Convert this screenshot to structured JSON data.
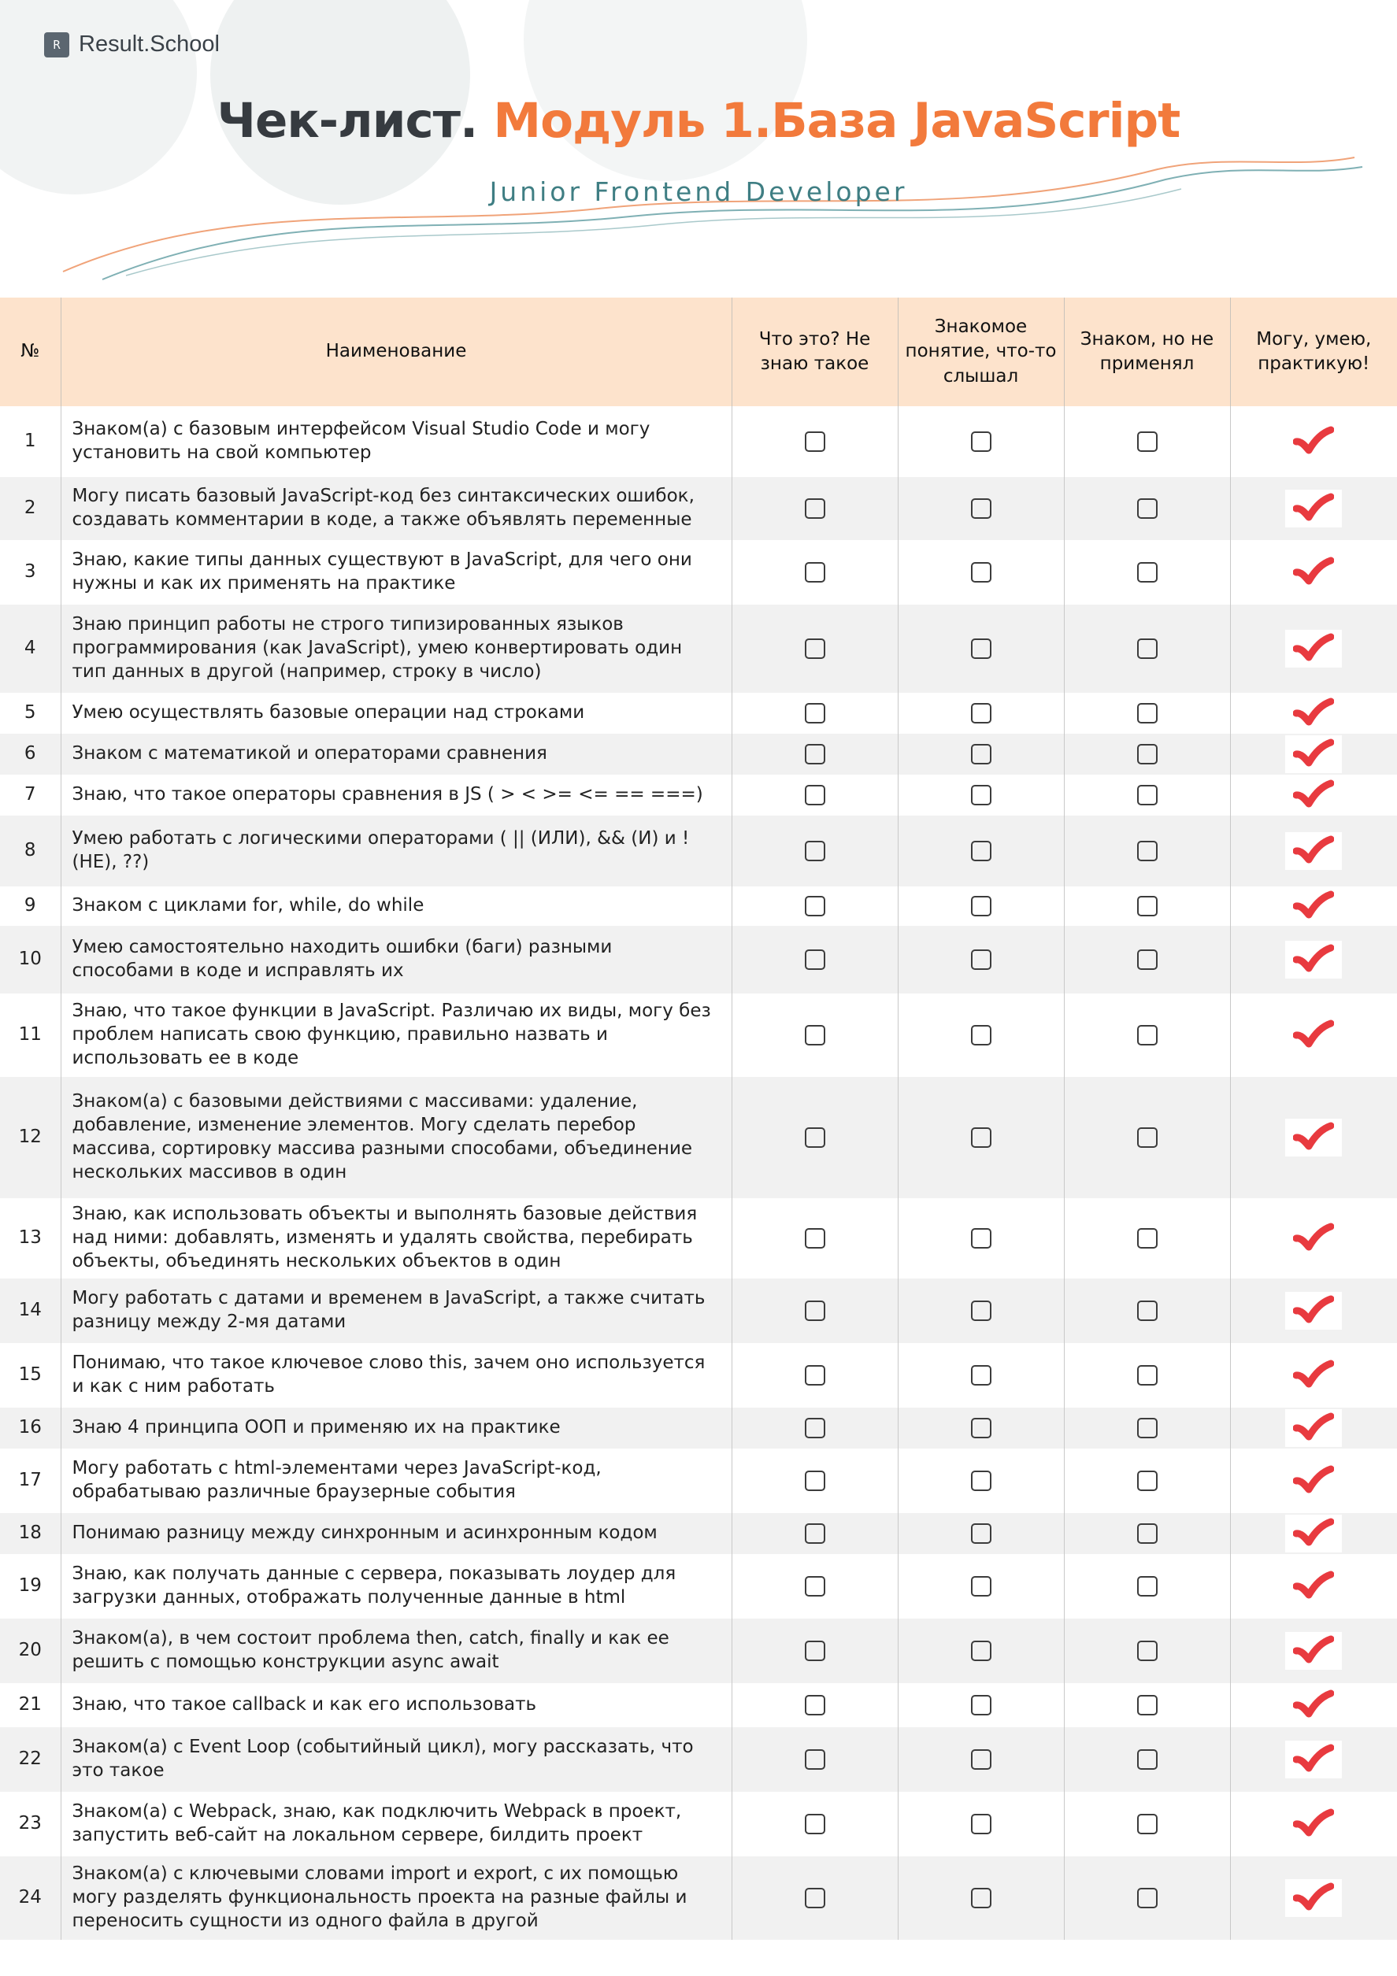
{
  "brand": {
    "logo_text": "Result.School",
    "logo_mark": "R"
  },
  "header": {
    "title_part1": "Чек-лист.",
    "title_part2": "Модуль 1.База JavaScript",
    "subtitle": "Junior Frontend Developer"
  },
  "colors": {
    "accent": "#f27a3c",
    "teal": "#3f7e83",
    "header_bg": "#fde3cc",
    "tick": "#e83a3f"
  },
  "table": {
    "columns": {
      "num": "№",
      "name": "Наименование",
      "c1": "Что это? Не знаю такое",
      "c2": "Знакомое понятие, что-то слышал",
      "c3": "Знаком, но не применял",
      "c4": "Могу, умею, практикую!"
    },
    "rows": [
      {
        "n": "1",
        "text": "Знаком(а) с базовым интерфейсом Visual Studio Code и могу установить на свой компьютер",
        "done": true
      },
      {
        "n": "2",
        "text": "Могу писать базовый JavaScript-код без синтаксических ошибок, создавать комментарии в коде, а также объявлять переменные",
        "done": true
      },
      {
        "n": "3",
        "text": "Знаю, какие типы данных существуют в JavaScript, для чего они нужны и как их применять на практике",
        "done": true
      },
      {
        "n": "4",
        "text": "Знаю принцип работы не строго типизированных языков программирования (как JavaScript), умею конвертировать один тип данных в другой (например, строку в число)",
        "done": true
      },
      {
        "n": "5",
        "text": "Умею осуществлять базовые операции над строками",
        "done": true
      },
      {
        "n": "6",
        "text": "Знаком с математикой и операторами сравнения",
        "done": true
      },
      {
        "n": "7",
        "text": "Знаю, что такое операторы сравнения в JS ( > < >= <= == ===)",
        "done": true
      },
      {
        "n": "8",
        "text": "Умею работать с логическими операторами ( || (ИЛИ), && (И) и ! (НЕ), ??)",
        "done": true
      },
      {
        "n": "9",
        "text": "Знаком с циклами for, while, do while",
        "done": true
      },
      {
        "n": "10",
        "text": "Умею самостоятельно находить ошибки (баги) разными способами в коде и исправлять их",
        "done": true
      },
      {
        "n": "11",
        "text": "Знаю, что такое функции в JavaScript. Различаю их виды, могу без проблем написать свою функцию, правильно назвать и использовать ее в коде",
        "done": true
      },
      {
        "n": "12",
        "text": "Знаком(а) с базовыми действиями с массивами: удаление, добавление, изменение элементов. Могу сделать перебор массива, сортировку массива разными способами, объединение нескольких массивов в один",
        "done": true
      },
      {
        "n": "13",
        "text": "Знаю, как использовать объекты и выполнять базовые действия над ними: добавлять, изменять и удалять свойства, перебирать объекты, объединять нескольких объектов в один",
        "done": true
      },
      {
        "n": "14",
        "text": "Могу работать с датами и временем в JavaScript, а также считать разницу между 2-мя датами",
        "done": true
      },
      {
        "n": "15",
        "text": "Понимаю, что такое ключевое слово this, зачем оно используется и как с ним работать",
        "done": true
      },
      {
        "n": "16",
        "text": "Знаю 4 принципа ООП и применяю их на практике",
        "done": true
      },
      {
        "n": "17",
        "text": "Могу работать с html-элементами через JavaScript-код, обрабатываю различные браузерные события",
        "done": true
      },
      {
        "n": "18",
        "text": "Понимаю разницу между синхронным и асинхронным кодом",
        "done": true
      },
      {
        "n": "19",
        "text": "Знаю, как получать данные с сервера, показывать лоудер для загрузки данных, отображать полученные данные в html",
        "done": true
      },
      {
        "n": "20",
        "text": "Знаком(а), в чем состоит проблема then, catch, finally и как ее решить с помощью конструкции async await",
        "done": true
      },
      {
        "n": "21",
        "text": "Знаю, что такое callback и как его использовать",
        "done": true
      },
      {
        "n": "22",
        "text": "Знаком(а) с Event Loop (событийный цикл), могу рассказать, что это такое",
        "done": true
      },
      {
        "n": "23",
        "text": "Знаком(а) с Webpack, знаю, как подключить Webpack в проект, запустить веб-сайт на локальном сервере, билдить проект",
        "done": true
      },
      {
        "n": "24",
        "text": "Знаком(а) с ключевыми словами import и export, с их помощью могу разделять функциональность проекта на разные файлы и переносить сущности из одного файла в другой",
        "done": true
      }
    ]
  }
}
